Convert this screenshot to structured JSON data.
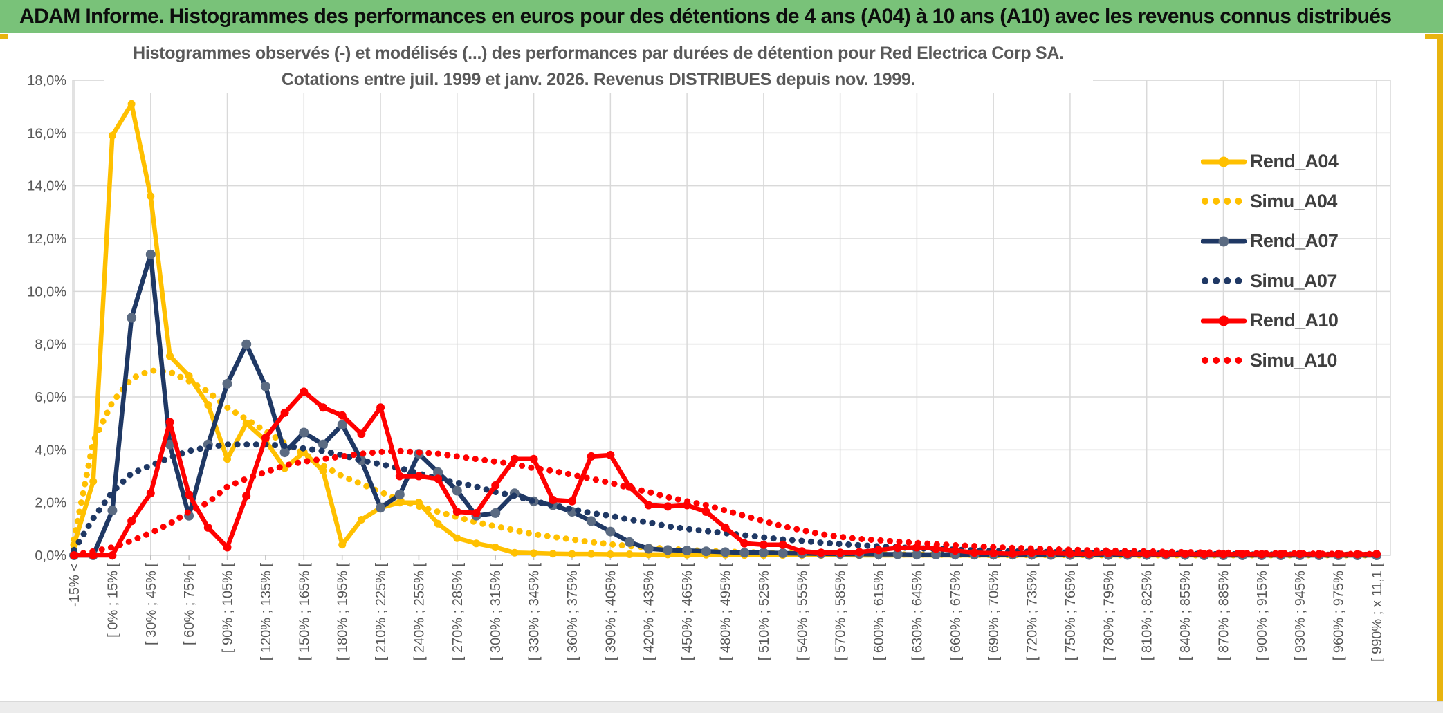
{
  "header": {
    "title": "ADAM Informe. Histogrammes des performances en euros pour des détentions de 4 ans (A04) à 10 ans (A10) avec les revenus connus distribués",
    "bg_color": "#79C279",
    "accent_color": "#E8B40F"
  },
  "chart": {
    "title_line1": "Histogrammes observés (-) et modélisés (...) des performances par durées de détention pour Red Electrica Corp SA.",
    "title_line2": "Cotations entre juil. 1999 et janv. 2026. Revenus DISTRIBUES depuis nov. 1999.",
    "title_color": "#595959",
    "grid_color": "#D9D9D9",
    "tick_color": "#BFBFBF",
    "axis_label_color": "#595959",
    "legend_text_color": "#3F3F3F"
  },
  "chart_data": {
    "type": "line",
    "title": "Histogrammes observés (-) et modélisés (...) des performances par durées de détention pour Red Electrica Corp SA. Cotations entre juil. 1999 et janv. 2026. Revenus DISTRIBUES depuis nov. 1999.",
    "n_bins": 69,
    "bin_width_pct": 15,
    "label_every_n_bins": 2,
    "grid_every_n_bins": 4,
    "legend_position": "right-top",
    "y_max": 18,
    "y_step": 2,
    "y_unit": "percent_of_observations",
    "y_tick_labels": [
      "0,0%",
      "2,0%",
      "4,0%",
      "6,0%",
      "8,0%",
      "10,0%",
      "12,0%",
      "14,0%",
      "16,0%",
      "18,0%"
    ],
    "x_tick_labels": [
      "-15% <",
      "[ 0% ; 15% [",
      "[ 30% ; 45% [",
      "[ 60% ; 75% [",
      "[ 90% ; 105% [",
      "[ 120% ; 135% [",
      "[ 150% ; 165% [",
      "[ 180% ; 195% [",
      "[ 210% ; 225% [",
      "[ 240% ; 255% [",
      "[ 270% ; 285% [",
      "[ 300% ; 315% [",
      "[ 330% ; 345% [",
      "[ 360% ; 375% [",
      "[ 390% ; 405% [",
      "[ 420% ; 435% [",
      "[ 450% ; 465% [",
      "[ 480% ; 495% [",
      "[ 510% ; 525% [",
      "[ 540% ; 555% [",
      "[ 570% ; 585% [",
      "[ 600% ; 615% [",
      "[ 630% ; 645% [",
      "[ 660% ; 675% [",
      "[ 690% ; 705% [",
      "[ 720% ; 735% [",
      "[ 750% ; 765% [",
      "[ 780% ; 795% [",
      "[ 810% ; 825% [",
      "[ 840% ; 855% [",
      "[ 870% ; 885% [",
      "[ 900% ; 915% [",
      "[ 930% ; 945% [",
      "[ 960% ; 975% [",
      "[ 990% ; x 11,1 ["
    ],
    "series": [
      {
        "name": "Rend_A04",
        "style": "solid",
        "color": "#FFC000",
        "marker_color": "#FFC000",
        "marker_r": 5.5,
        "values": [
          0.4,
          2.8,
          15.9,
          17.1,
          13.6,
          7.55,
          6.8,
          5.7,
          3.65,
          5.0,
          4.35,
          3.3,
          3.9,
          3.2,
          0.4,
          1.35,
          1.8,
          2.0,
          2.0,
          1.2,
          0.65,
          0.45,
          0.3,
          0.1,
          0.08,
          0.06,
          0.05,
          0.05,
          0.04,
          0.04,
          0.03,
          0.03,
          0.02,
          0.02,
          0.02,
          0.01,
          0.01,
          0.01,
          0.01,
          0.01,
          0.01,
          0,
          0,
          0,
          0,
          0,
          0,
          0,
          0,
          0,
          0,
          0,
          0,
          0,
          0,
          0,
          0,
          0,
          0,
          0,
          0,
          0,
          0,
          0,
          0,
          0,
          0,
          0,
          0
        ]
      },
      {
        "name": "Simu_A04",
        "style": "dotted",
        "color": "#FFC000",
        "marker_color": "#FFC000",
        "marker_r": 0,
        "values": [
          0.6,
          4.3,
          5.8,
          6.7,
          7.0,
          6.95,
          6.6,
          6.2,
          5.6,
          5.15,
          4.7,
          4.25,
          3.85,
          3.4,
          3.0,
          2.7,
          2.4,
          2.1,
          1.85,
          1.65,
          1.45,
          1.25,
          1.1,
          0.95,
          0.8,
          0.7,
          0.6,
          0.5,
          0.42,
          0.35,
          0.3,
          0.25,
          0.2,
          0.17,
          0.14,
          0.12,
          0.1,
          0.08,
          0.07,
          0.06,
          0.05,
          0.04,
          0.04,
          0.03,
          0.03,
          0.02,
          0.02,
          0.02,
          0.01,
          0.01,
          0.01,
          0.01,
          0.01,
          0.01,
          0,
          0,
          0,
          0,
          0,
          0,
          0,
          0,
          0,
          0,
          0,
          0,
          0,
          0,
          0
        ]
      },
      {
        "name": "Rend_A07",
        "style": "solid",
        "color": "#1F3864",
        "marker_color": "#5B6B82",
        "marker_r": 7,
        "values": [
          0,
          0,
          1.7,
          9.0,
          11.4,
          4.2,
          1.5,
          4.2,
          6.5,
          8.0,
          6.4,
          3.9,
          4.65,
          4.2,
          4.95,
          3.6,
          1.8,
          2.3,
          3.85,
          3.15,
          2.45,
          1.5,
          1.6,
          2.35,
          2.05,
          1.9,
          1.65,
          1.3,
          0.9,
          0.5,
          0.25,
          0.2,
          0.18,
          0.15,
          0.12,
          0.1,
          0.1,
          0.08,
          0.07,
          0.06,
          0.05,
          0.05,
          0.04,
          0.04,
          0.03,
          0.03,
          0.03,
          0.02,
          0.02,
          0.02,
          0.02,
          0.01,
          0.01,
          0.01,
          0.01,
          0.01,
          0.01,
          0.01,
          0.01,
          0,
          0,
          0,
          0,
          0,
          0,
          0,
          0,
          0,
          0
        ]
      },
      {
        "name": "Simu_A07",
        "style": "dotted",
        "color": "#1F3864",
        "marker_color": "#1F3864",
        "marker_r": 0,
        "values": [
          0.2,
          1.4,
          2.4,
          3.1,
          3.4,
          3.7,
          3.95,
          4.1,
          4.2,
          4.2,
          4.2,
          4.15,
          4.05,
          3.95,
          3.8,
          3.6,
          3.45,
          3.3,
          3.1,
          2.9,
          2.75,
          2.6,
          2.4,
          2.25,
          2.05,
          1.9,
          1.75,
          1.6,
          1.5,
          1.35,
          1.25,
          1.1,
          1.0,
          0.92,
          0.84,
          0.76,
          0.68,
          0.6,
          0.55,
          0.48,
          0.43,
          0.38,
          0.34,
          0.3,
          0.27,
          0.24,
          0.21,
          0.19,
          0.17,
          0.15,
          0.13,
          0.12,
          0.1,
          0.09,
          0.08,
          0.07,
          0.07,
          0.06,
          0.05,
          0.05,
          0.04,
          0.04,
          0.03,
          0.03,
          0.03,
          0.02,
          0.02,
          0.02,
          0.02
        ]
      },
      {
        "name": "Rend_A10",
        "style": "solid",
        "color": "#FF0000",
        "marker_color": "#FF0000",
        "marker_r": 6,
        "values": [
          0,
          0,
          0,
          1.3,
          2.35,
          5.05,
          2.3,
          1.05,
          0.3,
          2.25,
          4.45,
          5.4,
          6.2,
          5.6,
          5.3,
          4.6,
          5.6,
          3.0,
          3.0,
          2.9,
          1.65,
          1.6,
          2.65,
          3.65,
          3.65,
          2.1,
          2.05,
          3.75,
          3.8,
          2.6,
          1.9,
          1.85,
          1.9,
          1.65,
          1.05,
          0.45,
          0.4,
          0.4,
          0.15,
          0.1,
          0.1,
          0.12,
          0.2,
          0.28,
          0.3,
          0.25,
          0.18,
          0.1,
          0.08,
          0.06,
          0.1,
          0.08,
          0.06,
          0.05,
          0.08,
          0.05,
          0.05,
          0.04,
          0.05,
          0.04,
          0.04,
          0.05,
          0.04,
          0.04,
          0.05,
          0.04,
          0.04,
          0.04,
          0.05
        ]
      },
      {
        "name": "Simu_A10",
        "style": "dotted",
        "color": "#FF0000",
        "marker_color": "#FF0000",
        "marker_r": 0,
        "values": [
          0.02,
          0.15,
          0.3,
          0.55,
          0.85,
          1.2,
          1.65,
          2.0,
          2.6,
          2.9,
          3.15,
          3.4,
          3.55,
          3.65,
          3.75,
          3.85,
          3.92,
          3.95,
          3.9,
          3.85,
          3.75,
          3.65,
          3.55,
          3.45,
          3.3,
          3.2,
          3.05,
          2.9,
          2.75,
          2.55,
          2.4,
          2.2,
          2.05,
          1.9,
          1.7,
          1.5,
          1.3,
          1.1,
          0.95,
          0.8,
          0.7,
          0.62,
          0.57,
          0.52,
          0.47,
          0.42,
          0.38,
          0.35,
          0.31,
          0.28,
          0.26,
          0.23,
          0.21,
          0.19,
          0.18,
          0.16,
          0.15,
          0.13,
          0.12,
          0.11,
          0.1,
          0.09,
          0.08,
          0.08,
          0.07,
          0.06,
          0.06,
          0.05,
          0.05
        ]
      }
    ]
  }
}
